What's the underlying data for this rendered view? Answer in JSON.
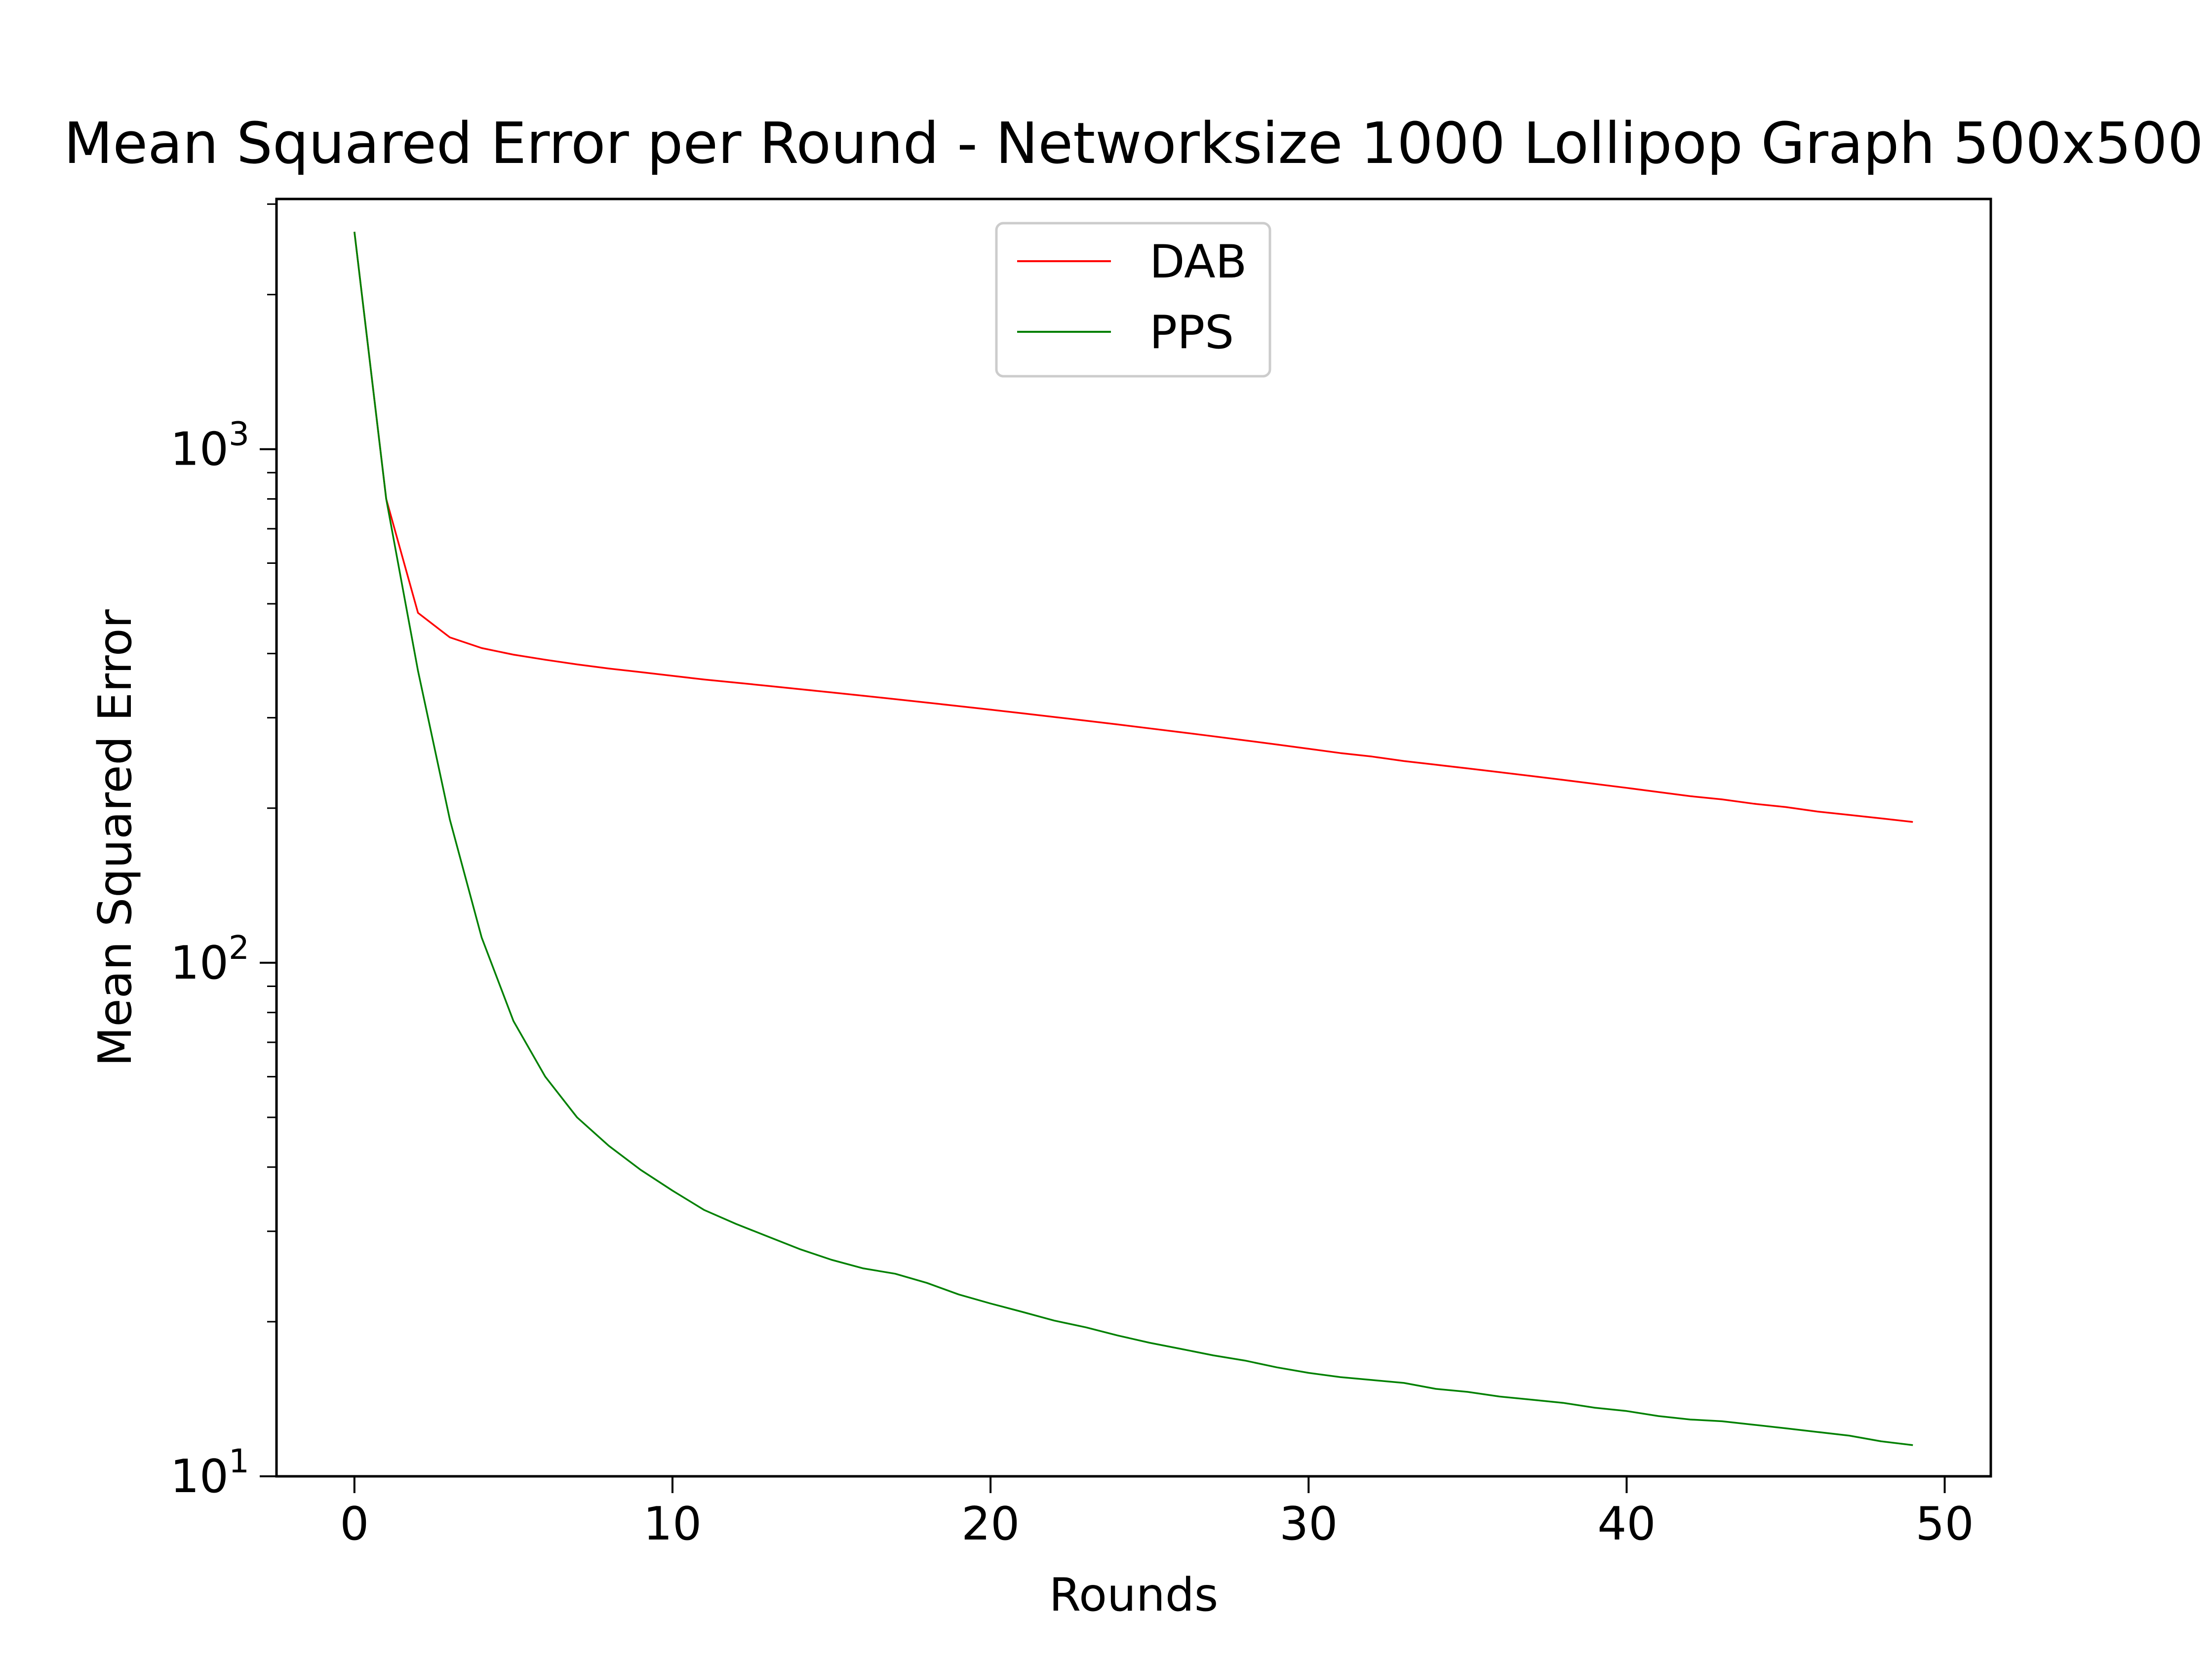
{
  "chart_data": {
    "type": "line",
    "title": "Mean Squared Error per Round - Networksize 1000 Lollipop Graph 500x500",
    "xlabel": "Rounds",
    "ylabel": "Mean Squared Error",
    "xlim": [
      -2.45,
      51.45
    ],
    "ylim": [
      10,
      3070
    ],
    "yscale": "log",
    "grid": false,
    "legend_position": "upper center",
    "x_ticks": [
      0,
      10,
      20,
      30,
      40,
      50
    ],
    "x_tick_labels": [
      "0",
      "10",
      "20",
      "30",
      "40",
      "50"
    ],
    "y_ticks": [
      10,
      100,
      1000
    ],
    "y_tick_labels": [
      {
        "base": "10",
        "exp": "1"
      },
      {
        "base": "10",
        "exp": "2"
      },
      {
        "base": "10",
        "exp": "3"
      }
    ],
    "x": [
      0,
      1,
      2,
      3,
      4,
      5,
      6,
      7,
      8,
      9,
      10,
      11,
      12,
      13,
      14,
      15,
      16,
      17,
      18,
      19,
      20,
      21,
      22,
      23,
      24,
      25,
      26,
      27,
      28,
      29,
      30,
      31,
      32,
      33,
      34,
      35,
      36,
      37,
      38,
      39,
      40,
      41,
      42,
      43,
      44,
      45,
      46,
      47,
      48,
      49
    ],
    "series": [
      {
        "name": "DAB",
        "color": "#ff0000",
        "values": [
          2650,
          800,
          480,
          430,
          410,
          398,
          389,
          381,
          374,
          368,
          362,
          356,
          351,
          346,
          341,
          336,
          331,
          326,
          321,
          316,
          311,
          306,
          301,
          296,
          291,
          286,
          281,
          276,
          271,
          266,
          261,
          256,
          252,
          247,
          243,
          239,
          235,
          231,
          227,
          223,
          219,
          215,
          211,
          208,
          204,
          201,
          197,
          194,
          191,
          188
        ]
      },
      {
        "name": "PPS",
        "color": "#008000",
        "values": [
          2650,
          800,
          370,
          190,
          112,
          77,
          60,
          50,
          44,
          39.5,
          36,
          33,
          31,
          29.3,
          27.7,
          26.4,
          25.4,
          24.8,
          23.8,
          22.6,
          21.7,
          20.9,
          20.1,
          19.5,
          18.8,
          18.2,
          17.7,
          17.2,
          16.8,
          16.3,
          15.9,
          15.6,
          15.4,
          15.2,
          14.8,
          14.6,
          14.3,
          14.1,
          13.9,
          13.6,
          13.4,
          13.1,
          12.9,
          12.8,
          12.6,
          12.4,
          12.2,
          12.0,
          11.7,
          11.5
        ]
      }
    ]
  }
}
